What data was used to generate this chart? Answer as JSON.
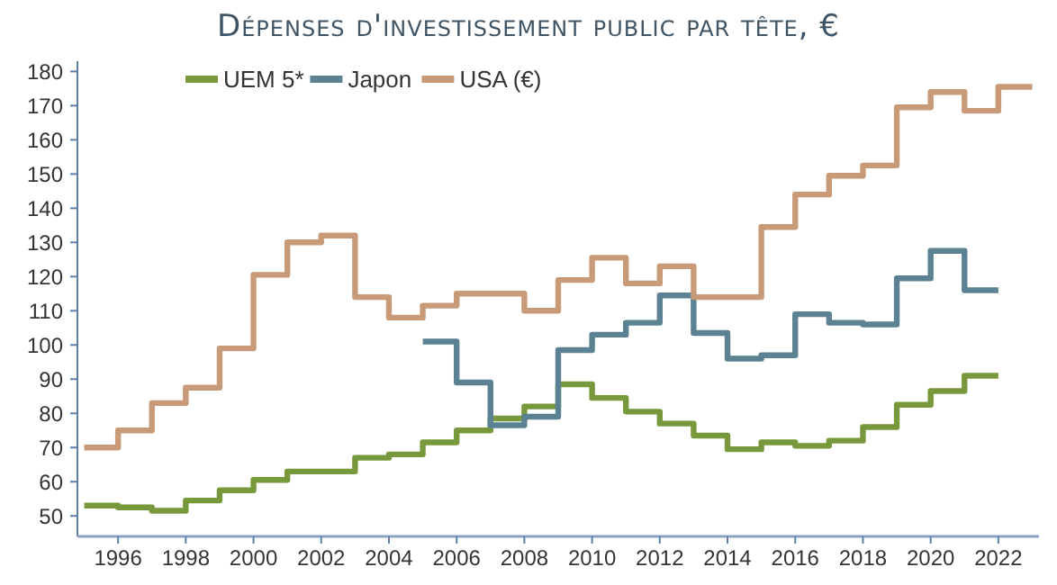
{
  "chart_data": {
    "type": "step",
    "title": "Dépenses d'investissement public par tête, €",
    "legend": "top",
    "grid": false,
    "xlim": [
      1994.8,
      2023.2
    ],
    "xticks": [
      1996,
      1998,
      2000,
      2002,
      2004,
      2006,
      2008,
      2010,
      2012,
      2014,
      2016,
      2018,
      2020,
      2022
    ],
    "ylim": [
      44,
      183
    ],
    "yticks": [
      50,
      60,
      70,
      80,
      90,
      100,
      110,
      120,
      130,
      140,
      150,
      160,
      170,
      180
    ],
    "series": [
      {
        "name": "UEM 5*",
        "color": "#77993b",
        "x": [
          1995,
          1996,
          1997,
          1998,
          1999,
          2000,
          2001,
          2002,
          2003,
          2004,
          2005,
          2006,
          2007,
          2008,
          2009,
          2010,
          2011,
          2012,
          2013,
          2014,
          2015,
          2016,
          2017,
          2018,
          2019,
          2020,
          2021,
          2022
        ],
        "values": [
          53,
          52.5,
          51.5,
          54.5,
          57.5,
          60.5,
          63,
          63,
          67,
          68,
          71.5,
          75,
          78.5,
          82,
          88.5,
          84.5,
          80.5,
          77,
          73.5,
          69.5,
          71.5,
          70.5,
          72,
          76,
          82.5,
          86.5,
          91,
          91
        ]
      },
      {
        "name": "Japon",
        "color": "#5b8293",
        "x": [
          2005,
          2006,
          2007,
          2008,
          2009,
          2010,
          2011,
          2012,
          2013,
          2014,
          2015,
          2016,
          2017,
          2018,
          2019,
          2020,
          2021,
          2022
        ],
        "values": [
          101,
          89,
          76.5,
          79,
          98.5,
          103,
          106.5,
          114.5,
          103.5,
          96,
          97,
          109,
          106.5,
          106,
          119.5,
          127.5,
          116,
          116
        ]
      },
      {
        "name": "USA (€)",
        "color": "#c99a78",
        "x": [
          1995,
          1996,
          1997,
          1998,
          1999,
          2000,
          2001,
          2002,
          2003,
          2004,
          2005,
          2006,
          2007,
          2008,
          2009,
          2010,
          2011,
          2012,
          2013,
          2014,
          2015,
          2016,
          2017,
          2018,
          2019,
          2020,
          2021,
          2022,
          2023
        ],
        "values": [
          70,
          75,
          83,
          87.5,
          99,
          120.5,
          130,
          132,
          114,
          108,
          111.5,
          115,
          115,
          110,
          119,
          125.5,
          118,
          123,
          114,
          114,
          134.5,
          144,
          149.5,
          152.5,
          169.5,
          174,
          168.5,
          175.5,
          175.5
        ]
      }
    ]
  }
}
